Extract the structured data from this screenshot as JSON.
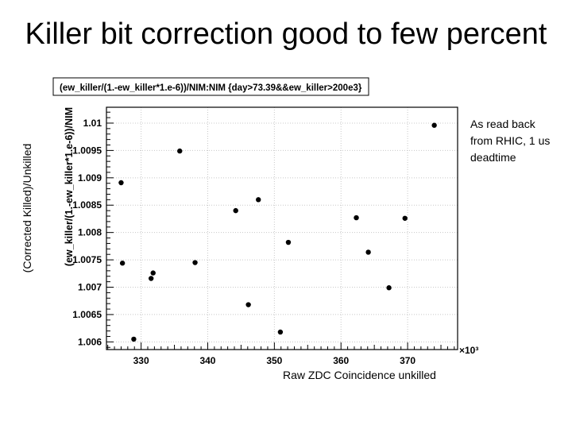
{
  "slide": {
    "title": "Killer bit correction good to few percent",
    "side_label": "(Corrected Killed)/Unkilled",
    "note": "As read back\nfrom RHIC, 1 us\ndeadtime",
    "bottom_label": "Raw ZDC Coincidence unkilled"
  },
  "chart_data": {
    "type": "scatter",
    "title": "(ew_killer/(1.-ew_killer*1.e-6))/NIM:NIM {day>73.39&&ew_killer>200e3}",
    "ylabel": "(ew_killer/(1.-ew_killer*1.e-6))/NIM",
    "xlabel": "",
    "x_exponent_label": "×10³",
    "xlim": [
      324.8,
      377.5
    ],
    "ylim": [
      1.00586,
      1.01029
    ],
    "x_ticks": [
      330,
      340,
      350,
      360,
      370
    ],
    "y_ticks": [
      1.006,
      1.0065,
      1.007,
      1.0075,
      1.008,
      1.0085,
      1.009,
      1.0095,
      1.01
    ],
    "x_tick_labels": [
      "330",
      "340",
      "350",
      "360",
      "370"
    ],
    "y_tick_labels": [
      "1.006",
      "1.0065",
      "1.007",
      "1.0075",
      "1.008",
      "1.0085",
      "1.009",
      "1.0095",
      "1.01"
    ],
    "grid": true,
    "points": [
      {
        "x": 327.0,
        "y": 1.00891
      },
      {
        "x": 327.2,
        "y": 1.00744
      },
      {
        "x": 328.9,
        "y": 1.00605
      },
      {
        "x": 331.5,
        "y": 1.00716
      },
      {
        "x": 331.8,
        "y": 1.00726
      },
      {
        "x": 335.8,
        "y": 1.00949
      },
      {
        "x": 338.1,
        "y": 1.00745
      },
      {
        "x": 344.2,
        "y": 1.0084
      },
      {
        "x": 346.1,
        "y": 1.00668
      },
      {
        "x": 347.6,
        "y": 1.0086
      },
      {
        "x": 350.9,
        "y": 1.00618
      },
      {
        "x": 352.1,
        "y": 1.00782
      },
      {
        "x": 362.3,
        "y": 1.00827
      },
      {
        "x": 364.1,
        "y": 1.00764
      },
      {
        "x": 367.2,
        "y": 1.00699
      },
      {
        "x": 369.6,
        "y": 1.00826
      },
      {
        "x": 374.0,
        "y": 1.00996
      }
    ],
    "marker_color": "#000000",
    "frame_color": "#000000",
    "grid_color": "#c8c8c8"
  }
}
